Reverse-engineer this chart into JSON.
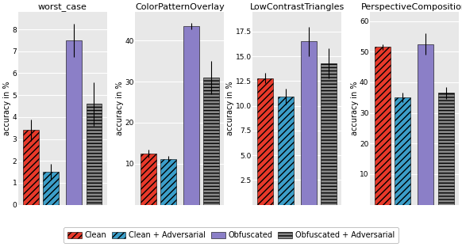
{
  "subplots": [
    {
      "title": "worst_case",
      "ylim": [
        0,
        8.8
      ],
      "yticks": [
        0,
        1,
        2,
        3,
        4,
        5,
        6,
        7,
        8
      ],
      "bars": [
        {
          "value": 3.4,
          "err": 0.5,
          "type": "clean"
        },
        {
          "value": 1.5,
          "err": 0.35,
          "type": "clean_adv"
        },
        {
          "value": 7.5,
          "err": 0.75,
          "type": "obfuscated"
        },
        {
          "value": 4.6,
          "err": 1.0,
          "type": "obfuscated_adv"
        }
      ]
    },
    {
      "title": "ColorPatternOverlay",
      "ylim": [
        0,
        47
      ],
      "yticks": [
        10,
        20,
        30,
        40
      ],
      "bars": [
        {
          "value": 12.5,
          "err": 0.9,
          "type": "clean"
        },
        {
          "value": 11.2,
          "err": 0.7,
          "type": "clean_adv"
        },
        {
          "value": 43.5,
          "err": 0.8,
          "type": "obfuscated"
        },
        {
          "value": 31.0,
          "err": 4.0,
          "type": "obfuscated_adv"
        }
      ]
    },
    {
      "title": "LowContrastTriangles",
      "ylim": [
        0,
        19.5
      ],
      "yticks": [
        2.5,
        5.0,
        7.5,
        10.0,
        12.5,
        15.0,
        17.5
      ],
      "bars": [
        {
          "value": 12.8,
          "err": 0.5,
          "type": "clean"
        },
        {
          "value": 10.9,
          "err": 0.8,
          "type": "clean_adv"
        },
        {
          "value": 16.5,
          "err": 1.5,
          "type": "obfuscated"
        },
        {
          "value": 14.3,
          "err": 1.5,
          "type": "obfuscated_adv"
        }
      ]
    },
    {
      "title": "PerspectiveComposition",
      "ylim": [
        0,
        63
      ],
      "yticks": [
        10,
        20,
        30,
        40,
        50,
        60
      ],
      "bars": [
        {
          "value": 51.5,
          "err": 1.0,
          "type": "clean"
        },
        {
          "value": 35.0,
          "err": 1.5,
          "type": "clean_adv"
        },
        {
          "value": 52.5,
          "err": 3.5,
          "type": "obfuscated"
        },
        {
          "value": 36.5,
          "err": 2.0,
          "type": "obfuscated_adv"
        }
      ]
    }
  ],
  "bar_styles": {
    "clean": {
      "color": "#e8392a",
      "hatch": "////",
      "edgecolor": "black",
      "label": "Clean"
    },
    "clean_adv": {
      "color": "#3b9ec9",
      "hatch": "////",
      "edgecolor": "black",
      "label": "Clean + Adversarial"
    },
    "obfuscated": {
      "color": "#8b7fc7",
      "hatch": "",
      "edgecolor": "black",
      "label": "Obfuscated"
    },
    "obfuscated_adv": {
      "color": "#888888",
      "hatch": "----",
      "edgecolor": "black",
      "label": "Obfuscated + Adversarial"
    }
  },
  "bar_width": 0.55,
  "ylabel": "accuracy in %",
  "background_color": "#e8e8e8",
  "figure_background": "#ffffff",
  "grid_color": "#ffffff",
  "title_fontsize": 8,
  "label_fontsize": 7,
  "tick_fontsize": 6.5,
  "legend_fontsize": 7
}
